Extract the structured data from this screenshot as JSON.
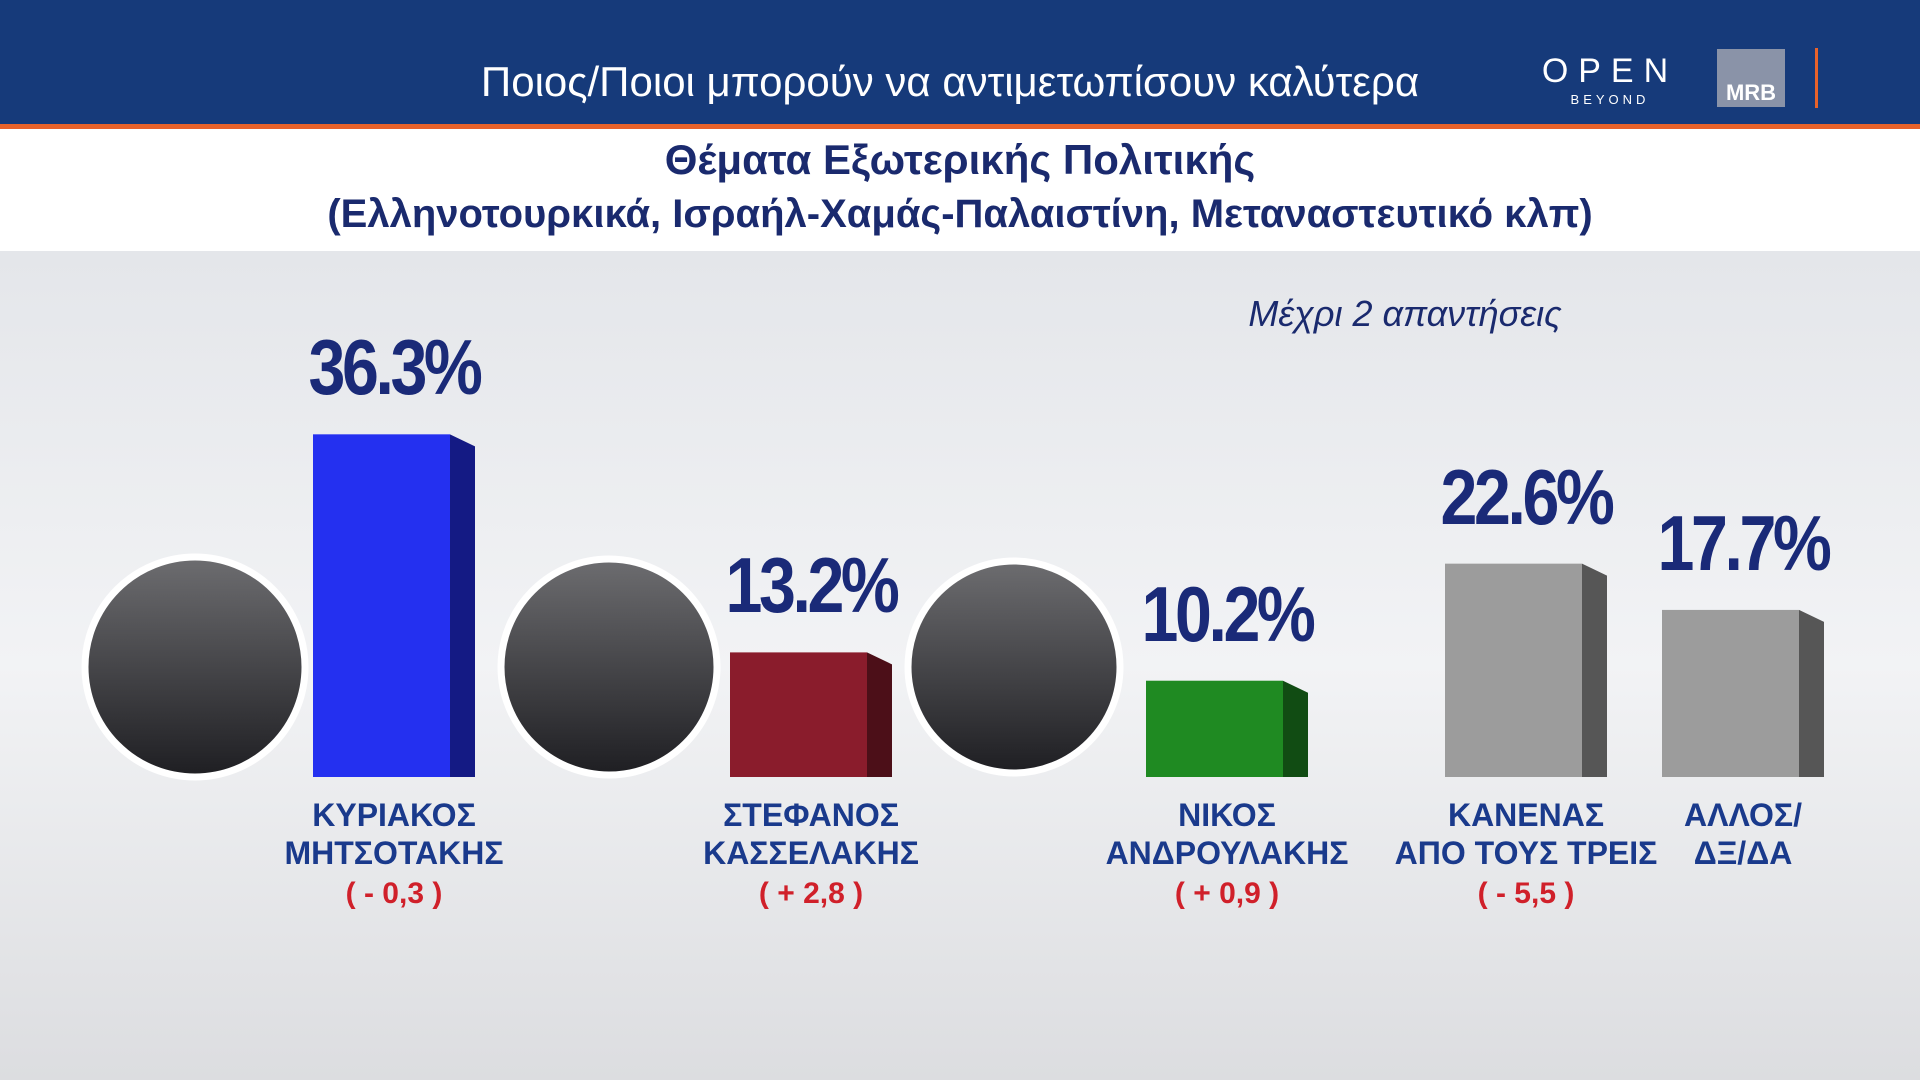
{
  "header": {
    "text": "Ποιος/Ποιοι  μπορούν να αντιμετωπίσουν καλύτερα",
    "logo_main": "OPEN",
    "logo_sub": "BEYOND",
    "logo_mrb": "MRB"
  },
  "chart_data": {
    "type": "bar",
    "title": "Θέματα Εξωτερικής Πολιτικής",
    "subtitle": "(Ελληνοτουρκικά, Ισραήλ-Χαμάς-Παλαιστίνη, Μεταναστευτικό κλπ)",
    "annotation": "Μέχρι 2 απαντήσεις",
    "categories": [
      "ΚΥΡΙΑΚΟΣ\nΜΗΤΣΟΤΑΚΗΣ",
      "ΣΤΕΦΑΝΟΣ\nΚΑΣΣΕΛΑΚΗΣ",
      "ΝΙΚΟΣ\nΑΝΔΡΟΥΛΑΚΗΣ",
      "ΚΑΝΕΝΑΣ\nΑΠΟ ΤΟΥΣ ΤΡΕΙΣ",
      "ΑΛΛΟΣ/\nΔΞ/ΔΑ"
    ],
    "values": [
      36.3,
      13.2,
      10.2,
      22.6,
      17.7
    ],
    "value_labels": [
      "36.3%",
      "13.2%",
      "10.2%",
      "22.6%",
      "17.7%"
    ],
    "changes": [
      "( - 0,3 )",
      "( + 2,8 )",
      "( + 0,9 )",
      "( - 5,5 )",
      null
    ],
    "colors": [
      "#2430f0",
      "#8a1c2c",
      "#1f8a22",
      "#9c9c9c",
      "#9c9c9c"
    ]
  }
}
